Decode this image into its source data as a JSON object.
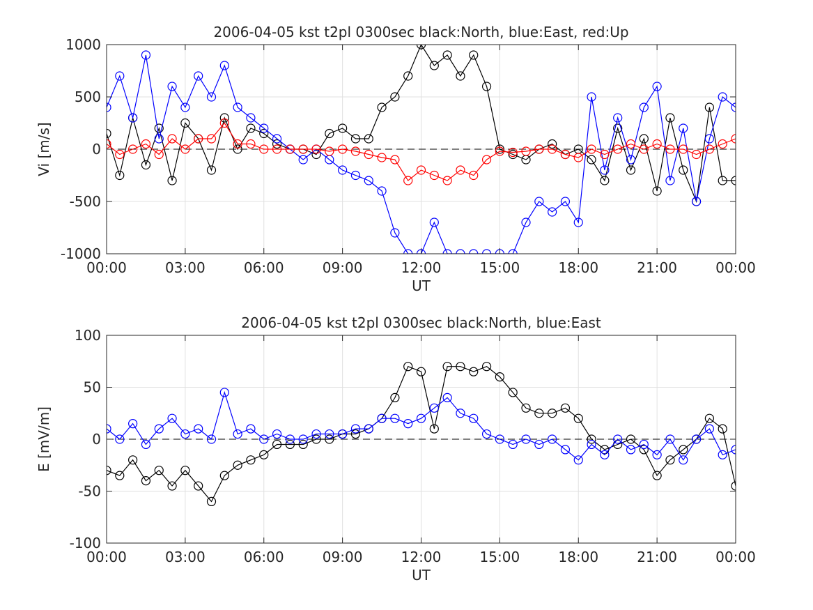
{
  "chart_data": [
    {
      "type": "line",
      "title": "2006-04-05 kst t2pl 0300sec black:North, blue:East, red:Up",
      "xlabel": "UT",
      "ylabel": "Vi [m/s]",
      "xlim": [
        0,
        24
      ],
      "ylim": [
        -1000,
        1000
      ],
      "xtick_labels": [
        "00:00",
        "03:00",
        "06:00",
        "09:00",
        "12:00",
        "15:00",
        "18:00",
        "21:00",
        "00:00"
      ],
      "ytick_labels": [
        "1000",
        "500",
        "0",
        "-500",
        "-1000"
      ],
      "grid": true,
      "marker": "circle",
      "dashed_zero_line": true,
      "series": [
        {
          "color": "#000000",
          "x": [
            0.0,
            0.5,
            1.0,
            1.5,
            2.0,
            2.5,
            3.0,
            3.5,
            4.0,
            4.5,
            5.0,
            5.5,
            6.0,
            6.5,
            7.0,
            7.5,
            8.0,
            8.5,
            9.0,
            9.5,
            10.0,
            10.5,
            11.0,
            11.5,
            12.0,
            12.5,
            13.0,
            13.5,
            14.0,
            14.5,
            15.0,
            15.5,
            16.0,
            16.5,
            17.0,
            17.5,
            18.0,
            18.5,
            19.0,
            19.5,
            20.0,
            20.5,
            21.0,
            21.5,
            22.0,
            22.5,
            23.0,
            23.5,
            24.0
          ],
          "values": [
            150,
            -250,
            300,
            -150,
            200,
            -300,
            250,
            100,
            -200,
            300,
            0,
            200,
            150,
            50,
            0,
            0,
            -50,
            150,
            200,
            100,
            100,
            400,
            500,
            700,
            1000,
            800,
            900,
            700,
            900,
            600,
            0,
            -50,
            -100,
            0,
            50,
            -50,
            0,
            -100,
            -300,
            200,
            -200,
            100,
            -400,
            300,
            -200,
            -500,
            400,
            -300,
            -300
          ]
        },
        {
          "color": "#0000ff",
          "x": [
            0.0,
            0.5,
            1.0,
            1.5,
            2.0,
            2.5,
            3.0,
            3.5,
            4.0,
            4.5,
            5.0,
            5.5,
            6.0,
            6.5,
            7.0,
            7.5,
            8.0,
            8.5,
            9.0,
            9.5,
            10.0,
            10.5,
            11.0,
            11.5,
            12.0,
            12.5,
            13.0,
            13.5,
            14.0,
            14.5,
            15.0,
            15.5,
            16.0,
            16.5,
            17.0,
            17.5,
            18.0,
            18.5,
            19.0,
            19.5,
            20.0,
            20.5,
            21.0,
            21.5,
            22.0,
            22.5,
            23.0,
            23.5,
            24.0
          ],
          "values": [
            400,
            700,
            300,
            900,
            100,
            600,
            400,
            700,
            500,
            800,
            400,
            300,
            200,
            100,
            0,
            -100,
            0,
            -100,
            -200,
            -250,
            -300,
            -400,
            -800,
            -1000,
            -1000,
            -700,
            -1000,
            -1000,
            -1000,
            -1000,
            -1000,
            -1000,
            -700,
            -500,
            -600,
            -500,
            -700,
            500,
            -200,
            300,
            -100,
            400,
            600,
            -300,
            200,
            -500,
            100,
            500,
            400
          ]
        },
        {
          "color": "#ff0000",
          "x": [
            0.0,
            0.5,
            1.0,
            1.5,
            2.0,
            2.5,
            3.0,
            3.5,
            4.0,
            4.5,
            5.0,
            5.5,
            6.0,
            6.5,
            7.0,
            7.5,
            8.0,
            8.5,
            9.0,
            9.5,
            10.0,
            10.5,
            11.0,
            11.5,
            12.0,
            12.5,
            13.0,
            13.5,
            14.0,
            14.5,
            15.0,
            15.5,
            16.0,
            16.5,
            17.0,
            17.5,
            18.0,
            18.5,
            19.0,
            19.5,
            20.0,
            20.5,
            21.0,
            21.5,
            22.0,
            22.5,
            23.0,
            23.5,
            24.0
          ],
          "values": [
            50,
            -50,
            0,
            50,
            -50,
            100,
            0,
            100,
            100,
            250,
            50,
            50,
            0,
            0,
            0,
            0,
            0,
            -20,
            0,
            -20,
            -50,
            -80,
            -100,
            -300,
            -200,
            -250,
            -300,
            -200,
            -250,
            -100,
            -20,
            -30,
            -20,
            0,
            0,
            -50,
            -80,
            0,
            -50,
            0,
            50,
            0,
            50,
            0,
            0,
            -50,
            0,
            50,
            100
          ]
        }
      ]
    },
    {
      "type": "line",
      "title": "2006-04-05 kst t2pl 0300sec black:North, blue:East",
      "xlabel": "UT",
      "ylabel": "E [mV/m]",
      "xlim": [
        0,
        24
      ],
      "ylim": [
        -100,
        100
      ],
      "xtick_labels": [
        "00:00",
        "03:00",
        "06:00",
        "09:00",
        "12:00",
        "15:00",
        "18:00",
        "21:00",
        "00:00"
      ],
      "ytick_labels": [
        "100",
        "50",
        "0",
        "-50",
        "-100"
      ],
      "grid": true,
      "marker": "circle",
      "dashed_zero_line": true,
      "series": [
        {
          "color": "#000000",
          "x": [
            0.0,
            0.5,
            1.0,
            1.5,
            2.0,
            2.5,
            3.0,
            3.5,
            4.0,
            4.5,
            5.0,
            5.5,
            6.0,
            6.5,
            7.0,
            7.5,
            8.0,
            8.5,
            9.0,
            9.5,
            10.0,
            10.5,
            11.0,
            11.5,
            12.0,
            12.5,
            13.0,
            13.5,
            14.0,
            14.5,
            15.0,
            15.5,
            16.0,
            16.5,
            17.0,
            17.5,
            18.0,
            18.5,
            19.0,
            19.5,
            20.0,
            20.5,
            21.0,
            21.5,
            22.0,
            22.5,
            23.0,
            23.5,
            24.0
          ],
          "values": [
            -30,
            -35,
            -20,
            -40,
            -30,
            -45,
            -30,
            -45,
            -60,
            -35,
            -25,
            -20,
            -15,
            -5,
            -5,
            -5,
            0,
            0,
            5,
            5,
            10,
            20,
            40,
            70,
            65,
            10,
            70,
            70,
            65,
            70,
            60,
            45,
            30,
            25,
            25,
            30,
            20,
            0,
            -10,
            -5,
            0,
            -10,
            -35,
            -20,
            -10,
            0,
            20,
            10,
            -45
          ]
        },
        {
          "color": "#0000ff",
          "x": [
            0.0,
            0.5,
            1.0,
            1.5,
            2.0,
            2.5,
            3.0,
            3.5,
            4.0,
            4.5,
            5.0,
            5.5,
            6.0,
            6.5,
            7.0,
            7.5,
            8.0,
            8.5,
            9.0,
            9.5,
            10.0,
            10.5,
            11.0,
            11.5,
            12.0,
            12.5,
            13.0,
            13.5,
            14.0,
            14.5,
            15.0,
            15.5,
            16.0,
            16.5,
            17.0,
            17.5,
            18.0,
            18.5,
            19.0,
            19.5,
            20.0,
            20.5,
            21.0,
            21.5,
            22.0,
            22.5,
            23.0,
            23.5,
            24.0
          ],
          "values": [
            10,
            0,
            15,
            -5,
            10,
            20,
            5,
            10,
            0,
            45,
            5,
            10,
            0,
            5,
            0,
            0,
            5,
            5,
            5,
            10,
            10,
            20,
            20,
            15,
            20,
            30,
            40,
            25,
            20,
            5,
            0,
            -5,
            0,
            -5,
            0,
            -10,
            -20,
            -5,
            -15,
            0,
            -10,
            -5,
            -15,
            0,
            -20,
            0,
            10,
            -15,
            -10
          ]
        }
      ]
    }
  ]
}
